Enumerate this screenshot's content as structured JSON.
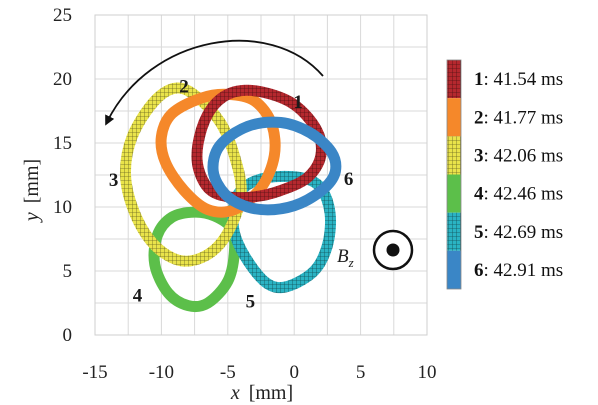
{
  "chart_data": {
    "type": "line",
    "xlabel_var": "x",
    "xlabel_unit": "[mm]",
    "ylabel_var": "y",
    "ylabel_unit": "[mm]",
    "xlim": [
      -15,
      10
    ],
    "ylim": [
      0,
      25
    ],
    "x_ticks": [
      -15,
      -10,
      -5,
      0,
      5,
      10
    ],
    "y_ticks": [
      0,
      5,
      10,
      15,
      20,
      25
    ],
    "x_tick_labels": [
      "-15",
      "-10",
      "-5",
      "0",
      "5",
      "10"
    ],
    "y_tick_labels": [
      "0",
      "5",
      "10",
      "15",
      "20",
      "25"
    ],
    "grid": true,
    "legend_position": "right",
    "series": [
      {
        "id": "1",
        "name": "41.54 ms",
        "color": "#b5282e",
        "pattern": "hatched",
        "label_at": [
          0.3,
          18.2
        ],
        "points": [
          [
            -4.5,
            19.0
          ],
          [
            -2.5,
            19.0
          ],
          [
            0.0,
            18.0
          ],
          [
            1.7,
            16.0
          ],
          [
            2.0,
            14.0
          ],
          [
            1.0,
            12.3
          ],
          [
            -1.0,
            11.3
          ],
          [
            -3.0,
            10.8
          ],
          [
            -5.0,
            10.8
          ],
          [
            -6.5,
            11.5
          ],
          [
            -7.3,
            13.5
          ],
          [
            -7.0,
            16.0
          ],
          [
            -6.0,
            18.0
          ]
        ]
      },
      {
        "id": "2",
        "name": "41.77 ms",
        "color": "#f5882a",
        "pattern": "solid",
        "label_at": [
          -8.3,
          19.4
        ],
        "points": [
          [
            -7.0,
            18.5
          ],
          [
            -5.0,
            18.8
          ],
          [
            -3.0,
            18.3
          ],
          [
            -1.7,
            16.5
          ],
          [
            -1.5,
            14.0
          ],
          [
            -2.5,
            11.5
          ],
          [
            -4.5,
            9.8
          ],
          [
            -6.5,
            9.8
          ],
          [
            -8.3,
            11.3
          ],
          [
            -9.7,
            13.5
          ],
          [
            -10.0,
            15.5
          ],
          [
            -9.2,
            17.3
          ]
        ]
      },
      {
        "id": "3",
        "name": "42.06 ms",
        "color": "#e9e34a",
        "pattern": "hatched",
        "label_at": [
          -13.6,
          12.1
        ],
        "points": [
          [
            -8.8,
            19.3
          ],
          [
            -7.2,
            18.5
          ],
          [
            -5.5,
            16.5
          ],
          [
            -4.5,
            14.0
          ],
          [
            -4.0,
            11.0
          ],
          [
            -5.0,
            8.0
          ],
          [
            -6.5,
            6.3
          ],
          [
            -8.5,
            5.8
          ],
          [
            -10.5,
            7.0
          ],
          [
            -12.0,
            9.5
          ],
          [
            -12.7,
            12.5
          ],
          [
            -12.2,
            15.5
          ],
          [
            -10.5,
            18.3
          ]
        ]
      },
      {
        "id": "4",
        "name": "42.46 ms",
        "color": "#5cbf4a",
        "pattern": "solid",
        "label_at": [
          -11.8,
          3.1
        ],
        "points": [
          [
            -7.5,
            9.6
          ],
          [
            -6.0,
            9.3
          ],
          [
            -4.7,
            8.3
          ],
          [
            -4.5,
            6.5
          ],
          [
            -5.0,
            4.2
          ],
          [
            -6.5,
            2.5
          ],
          [
            -8.0,
            2.3
          ],
          [
            -9.5,
            3.3
          ],
          [
            -10.5,
            5.5
          ],
          [
            -10.3,
            7.8
          ],
          [
            -9.2,
            9.2
          ]
        ]
      },
      {
        "id": "5",
        "name": "42.69 ms",
        "color": "#2ab3c3",
        "pattern": "hatched",
        "label_at": [
          -3.3,
          2.6
        ],
        "points": [
          [
            -2.0,
            12.3
          ],
          [
            0.5,
            12.3
          ],
          [
            2.0,
            11.5
          ],
          [
            2.7,
            9.5
          ],
          [
            2.5,
            7.0
          ],
          [
            1.5,
            5.0
          ],
          [
            -0.5,
            3.8
          ],
          [
            -2.0,
            4.0
          ],
          [
            -3.5,
            5.8
          ],
          [
            -4.5,
            8.0
          ],
          [
            -4.5,
            10.3
          ],
          [
            -3.7,
            11.6
          ]
        ]
      },
      {
        "id": "6",
        "name": "42.91 ms",
        "color": "#3a86c6",
        "pattern": "solid",
        "label_at": [
          4.1,
          12.2
        ],
        "points": [
          [
            -3.5,
            16.3
          ],
          [
            -1.0,
            16.6
          ],
          [
            1.2,
            15.8
          ],
          [
            2.8,
            14.3
          ],
          [
            3.1,
            12.8
          ],
          [
            2.3,
            11.5
          ],
          [
            0.5,
            10.3
          ],
          [
            -1.5,
            9.8
          ],
          [
            -3.5,
            10.0
          ],
          [
            -5.2,
            11.0
          ],
          [
            -6.1,
            12.8
          ],
          [
            -5.6,
            14.8
          ]
        ]
      }
    ]
  },
  "annotations": {
    "bz_label": "B",
    "bz_sub": "z",
    "field_symbol": "out-of-page-dot-icon",
    "rotation_arrow": "counterclockwise-arrow-icon"
  },
  "legend_entries": [
    {
      "num": "1",
      "sep": ": ",
      "text": "41.54 ms"
    },
    {
      "num": "2",
      "sep": ": ",
      "text": "41.77 ms"
    },
    {
      "num": "3",
      "sep": ": ",
      "text": "42.06 ms"
    },
    {
      "num": "4",
      "sep": ": ",
      "text": "42.46 ms"
    },
    {
      "num": "5",
      "sep": ": ",
      "text": "42.69 ms"
    },
    {
      "num": "6",
      "sep": ": ",
      "text": "42.91 ms"
    }
  ]
}
